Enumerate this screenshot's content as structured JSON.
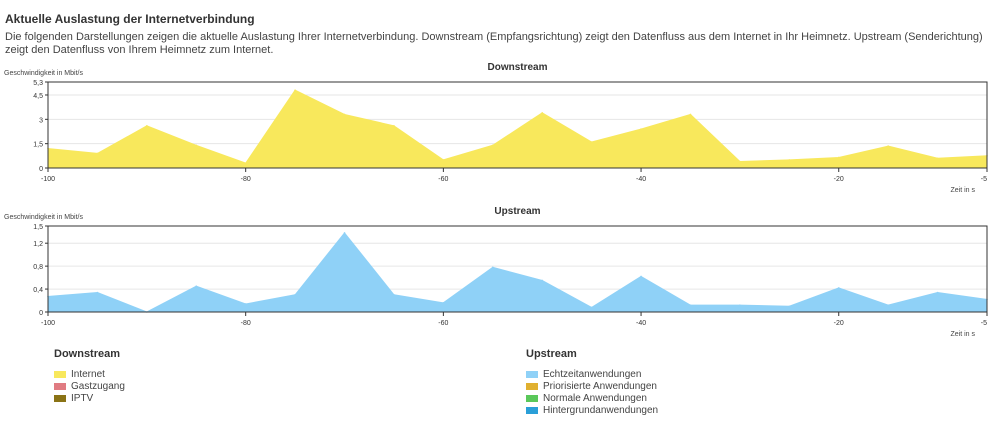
{
  "page": {
    "title": "Aktuelle Auslastung der Internetverbindung",
    "description": "Die folgenden Darstellungen zeigen die aktuelle Auslastung Ihrer Internetverbindung. Downstream (Empfangsrichtung) zeigt den Datenfluss aus dem Internet in Ihr Heimnetz. Upstream (Senderichtung) zeigt den Datenfluss von Ihrem Heimnetz zum Internet."
  },
  "chart_data": [
    {
      "type": "area",
      "title": "Downstream",
      "ylabel": "Geschwindigkeit in Mbit/s",
      "xlabel": "Zeit in s",
      "xlim": [
        -100,
        -5
      ],
      "ylim": [
        0,
        5.3
      ],
      "xticks": [
        -100,
        -80,
        -60,
        -40,
        -20,
        -5
      ],
      "xtick_labels": [
        "-100",
        "-80",
        "-60",
        "-40",
        "-20",
        "-5"
      ],
      "yticks": [
        0,
        1.5,
        3,
        4.5,
        5.3
      ],
      "ytick_labels": [
        "0",
        "1,5",
        "3",
        "4,5",
        "5,3"
      ],
      "grid": true,
      "color": "#f8e85c",
      "series": [
        {
          "name": "Internet",
          "x": [
            -100,
            -95,
            -90,
            -85,
            -80,
            -75,
            -70,
            -65,
            -60,
            -55,
            -50,
            -45,
            -40,
            -35,
            -30,
            -25,
            -20,
            -15,
            -10,
            -5
          ],
          "y": [
            1.2,
            0.9,
            2.6,
            1.4,
            0.3,
            4.8,
            3.3,
            2.6,
            0.5,
            1.4,
            3.4,
            1.6,
            2.4,
            3.3,
            0.4,
            0.5,
            0.65,
            1.35,
            0.6,
            0.75
          ]
        }
      ]
    },
    {
      "type": "area",
      "title": "Upstream",
      "ylabel": "Geschwindigkeit in Mbit/s",
      "xlabel": "Zeit in s",
      "xlim": [
        -100,
        -5
      ],
      "ylim": [
        0,
        1.5
      ],
      "xticks": [
        -100,
        -80,
        -60,
        -40,
        -20,
        -5
      ],
      "xtick_labels": [
        "-100",
        "-80",
        "-60",
        "-40",
        "-20",
        "-5"
      ],
      "yticks": [
        0,
        0.4,
        0.8,
        1.2,
        1.5
      ],
      "ytick_labels": [
        "0",
        "0,4",
        "0,8",
        "1,2",
        "1,5"
      ],
      "grid": true,
      "color": "#8fd1f7",
      "series": [
        {
          "name": "Echtzeitanwendungen",
          "x": [
            -100,
            -95,
            -90,
            -85,
            -80,
            -75,
            -70,
            -65,
            -60,
            -55,
            -50,
            -45,
            -40,
            -35,
            -30,
            -25,
            -20,
            -15,
            -10,
            -5
          ],
          "y": [
            0.27,
            0.34,
            0.0,
            0.45,
            0.14,
            0.3,
            1.38,
            0.3,
            0.16,
            0.78,
            0.55,
            0.08,
            0.62,
            0.12,
            0.12,
            0.1,
            0.42,
            0.12,
            0.34,
            0.22
          ]
        }
      ]
    }
  ],
  "legend": {
    "downstream": {
      "title": "Downstream",
      "items": [
        {
          "label": "Internet",
          "color": "#f8e85c"
        },
        {
          "label": "Gastzugang",
          "color": "#e07b82"
        },
        {
          "label": "IPTV",
          "color": "#8a7316"
        }
      ]
    },
    "upstream": {
      "title": "Upstream",
      "items": [
        {
          "label": "Echtzeitanwendungen",
          "color": "#8fd1f7"
        },
        {
          "label": "Priorisierte Anwendungen",
          "color": "#e0b030"
        },
        {
          "label": "Normale Anwendungen",
          "color": "#5ac85a"
        },
        {
          "label": "Hintergrundanwendungen",
          "color": "#2a9fd8"
        }
      ]
    }
  }
}
